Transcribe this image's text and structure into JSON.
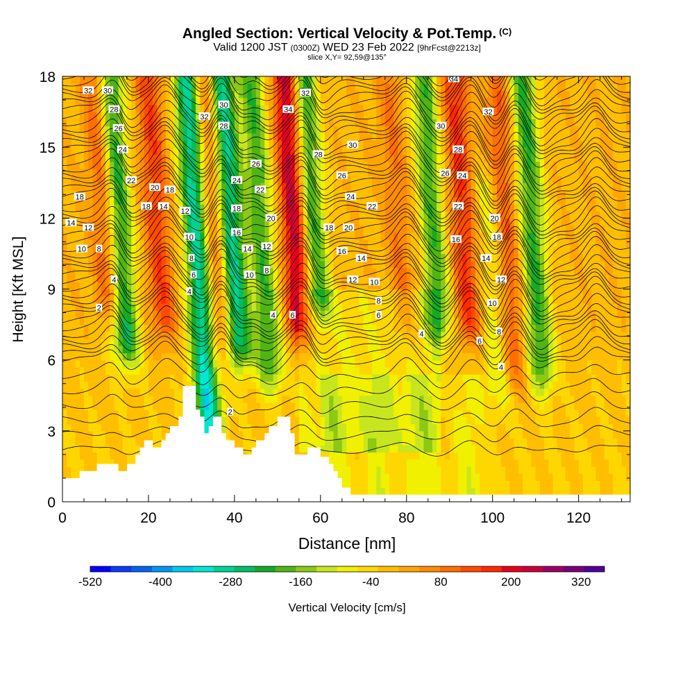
{
  "title": {
    "main": "Angled Section: Vertical Velocity & Pot.Temp.",
    "unit_tag": "(C)",
    "valid_prefix": "Valid 1200 JST",
    "valid_utc": "(0300Z)",
    "valid_date": "WED 23 Feb 2022",
    "forecast": "[9hrFcst@2213z]",
    "slice": "slice X,Y= 92,59@135°"
  },
  "chart_data": {
    "type": "heatmap",
    "xlabel": "Distance [nm]",
    "ylabel": "Height [Kft MSL]",
    "xlim": [
      0,
      132
    ],
    "ylim": [
      0,
      18
    ],
    "x_ticks": [
      0,
      20,
      40,
      60,
      80,
      100,
      120
    ],
    "y_ticks": [
      0,
      3,
      6,
      9,
      12,
      15,
      18
    ],
    "colorbar": {
      "label": "Vertical Velocity [cm/s]",
      "tick_labels": [
        "-520",
        "-400",
        "-280",
        "-160",
        "-40",
        "80",
        "200",
        "320"
      ],
      "tick_values": [
        -520,
        -400,
        -280,
        -160,
        -40,
        80,
        200,
        320
      ],
      "bins": [
        -520,
        360
      ],
      "bin_width": 40,
      "colors": [
        "#0000ff",
        "#0a3cf5",
        "#0064f0",
        "#0096f0",
        "#00c8f0",
        "#00e6d2",
        "#00d296",
        "#00be64",
        "#14aa28",
        "#50b414",
        "#8cc814",
        "#c8e61e",
        "#f0f000",
        "#ffd700",
        "#ffbe00",
        "#ffa500",
        "#ff8c00",
        "#ff6e00",
        "#ff4b00",
        "#ff2800",
        "#e6001e",
        "#c8003c",
        "#a00064",
        "#780078",
        "#500096"
      ]
    },
    "velocity_columns": [
      {
        "x": 13,
        "w_max": -220,
        "z_range": [
          7,
          18
        ]
      },
      {
        "x": 10,
        "w_max": 220,
        "z_range": [
          9,
          18
        ]
      },
      {
        "x": 22,
        "w_max": 220,
        "z_range": [
          8,
          18
        ]
      },
      {
        "x": 31,
        "w_max": -300,
        "z_range": [
          3,
          18
        ]
      },
      {
        "x": 35,
        "w_max": 230,
        "z_range": [
          7,
          18
        ]
      },
      {
        "x": 39,
        "w_max": -280,
        "z_range": [
          7,
          18
        ]
      },
      {
        "x": 46,
        "w_max": -160,
        "z_range": [
          6,
          18
        ]
      },
      {
        "x": 54,
        "w_max": 360,
        "z_range": [
          8,
          18
        ]
      },
      {
        "x": 58,
        "w_max": -200,
        "z_range": [
          9,
          18
        ]
      },
      {
        "x": 78,
        "w_max": 150,
        "z_range": [
          8,
          18
        ]
      },
      {
        "x": 86,
        "w_max": -160,
        "z_range": [
          8,
          18
        ]
      },
      {
        "x": 93,
        "w_max": 240,
        "z_range": [
          8,
          18
        ]
      },
      {
        "x": 99,
        "w_max": -40,
        "z_range": [
          5,
          13
        ]
      },
      {
        "x": 103,
        "w_max": 200,
        "z_range": [
          6,
          17
        ]
      },
      {
        "x": 109,
        "w_max": -180,
        "z_range": [
          6,
          18
        ]
      },
      {
        "x": 122,
        "w_max": 60,
        "z_range": [
          9,
          18
        ]
      }
    ],
    "terrain": [
      [
        0,
        1.0
      ],
      [
        4,
        1.0
      ],
      [
        4,
        1.3
      ],
      [
        8,
        1.3
      ],
      [
        8,
        1.6
      ],
      [
        13,
        1.6
      ],
      [
        13,
        1.3
      ],
      [
        15,
        1.3
      ],
      [
        15,
        1.6
      ],
      [
        17,
        1.6
      ],
      [
        17,
        2.0
      ],
      [
        18,
        2.0
      ],
      [
        18,
        2.3
      ],
      [
        19,
        2.3
      ],
      [
        19,
        2.6
      ],
      [
        21,
        2.6
      ],
      [
        21,
        2.3
      ],
      [
        23,
        2.3
      ],
      [
        23,
        2.6
      ],
      [
        24,
        2.6
      ],
      [
        24,
        2.9
      ],
      [
        25,
        2.9
      ],
      [
        25,
        3.2
      ],
      [
        27,
        3.2
      ],
      [
        27,
        3.6
      ],
      [
        28,
        3.6
      ],
      [
        28,
        4.9
      ],
      [
        31,
        4.9
      ],
      [
        31,
        3.9
      ],
      [
        32,
        3.9
      ],
      [
        32,
        3.6
      ],
      [
        33,
        3.6
      ],
      [
        33,
        2.9
      ],
      [
        34,
        2.9
      ],
      [
        34,
        3.2
      ],
      [
        35,
        3.2
      ],
      [
        35,
        3.6
      ],
      [
        37,
        3.6
      ],
      [
        37,
        2.9
      ],
      [
        38,
        2.9
      ],
      [
        38,
        2.6
      ],
      [
        40,
        2.6
      ],
      [
        40,
        2.3
      ],
      [
        42,
        2.3
      ],
      [
        42,
        2.0
      ],
      [
        44,
        2.0
      ],
      [
        44,
        2.3
      ],
      [
        45,
        2.3
      ],
      [
        45,
        2.6
      ],
      [
        47,
        2.6
      ],
      [
        47,
        2.9
      ],
      [
        48,
        2.9
      ],
      [
        48,
        3.2
      ],
      [
        50,
        3.2
      ],
      [
        50,
        3.6
      ],
      [
        53,
        3.6
      ],
      [
        53,
        2.9
      ],
      [
        54,
        2.9
      ],
      [
        54,
        2.0
      ],
      [
        57,
        2.0
      ],
      [
        57,
        2.3
      ],
      [
        60,
        2.3
      ],
      [
        60,
        1.9
      ],
      [
        62,
        1.9
      ],
      [
        62,
        1.6
      ],
      [
        63,
        1.6
      ],
      [
        63,
        1.3
      ],
      [
        64,
        1.3
      ],
      [
        64,
        1.0
      ],
      [
        65,
        1.0
      ],
      [
        65,
        0.6
      ],
      [
        67,
        0.6
      ],
      [
        67,
        0.3
      ],
      [
        132,
        0.3
      ]
    ],
    "theta_contours": {
      "levels": [
        2,
        4,
        6,
        8,
        10,
        12,
        14,
        16,
        18,
        20,
        22,
        24,
        26,
        28,
        30,
        32,
        34
      ],
      "labels": [
        {
          "v": "32",
          "x": 6,
          "z": 17.4
        },
        {
          "v": "30",
          "x": 10.5,
          "z": 17.4
        },
        {
          "v": "28",
          "x": 12,
          "z": 16.6
        },
        {
          "v": "26",
          "x": 13,
          "z": 15.8
        },
        {
          "v": "24",
          "x": 14,
          "z": 14.9
        },
        {
          "v": "22",
          "x": 16,
          "z": 13.6
        },
        {
          "v": "20",
          "x": 21.5,
          "z": 13.3
        },
        {
          "v": "18",
          "x": 25,
          "z": 13.2
        },
        {
          "v": "18",
          "x": 4,
          "z": 12.9
        },
        {
          "v": "18",
          "x": 19.5,
          "z": 12.5
        },
        {
          "v": "14",
          "x": 23.5,
          "z": 12.5
        },
        {
          "v": "12",
          "x": 28.5,
          "z": 12.3
        },
        {
          "v": "14",
          "x": 2,
          "z": 11.8
        },
        {
          "v": "12",
          "x": 6,
          "z": 11.6
        },
        {
          "v": "10",
          "x": 4.5,
          "z": 10.7
        },
        {
          "v": "8",
          "x": 8.5,
          "z": 10.7
        },
        {
          "v": "4",
          "x": 12,
          "z": 9.4
        },
        {
          "v": "2",
          "x": 8.5,
          "z": 8.2
        },
        {
          "v": "32",
          "x": 33,
          "z": 16.3
        },
        {
          "v": "30",
          "x": 37.5,
          "z": 16.8
        },
        {
          "v": "28",
          "x": 37.5,
          "z": 15.9
        },
        {
          "v": "26",
          "x": 45,
          "z": 14.3
        },
        {
          "v": "24",
          "x": 40.5,
          "z": 13.6
        },
        {
          "v": "22",
          "x": 46,
          "z": 13.2
        },
        {
          "v": "20",
          "x": 48.5,
          "z": 12.0
        },
        {
          "v": "18",
          "x": 40.5,
          "z": 12.4
        },
        {
          "v": "16",
          "x": 40.5,
          "z": 11.4
        },
        {
          "v": "14",
          "x": 43,
          "z": 10.7
        },
        {
          "v": "12",
          "x": 47.5,
          "z": 10.8
        },
        {
          "v": "10",
          "x": 29.5,
          "z": 11.2
        },
        {
          "v": "8",
          "x": 30,
          "z": 10.3
        },
        {
          "v": "6",
          "x": 30.5,
          "z": 9.6
        },
        {
          "v": "4",
          "x": 29.5,
          "z": 8.9
        },
        {
          "v": "10",
          "x": 43.5,
          "z": 9.6
        },
        {
          "v": "8",
          "x": 47.5,
          "z": 9.8
        },
        {
          "v": "4",
          "x": 49,
          "z": 7.9
        },
        {
          "v": "6",
          "x": 53.5,
          "z": 7.9
        },
        {
          "v": "2",
          "x": 39,
          "z": 3.8
        },
        {
          "v": "34",
          "x": 52.5,
          "z": 16.6
        },
        {
          "v": "32",
          "x": 56.5,
          "z": 17.3
        },
        {
          "v": "28",
          "x": 59.5,
          "z": 14.7
        },
        {
          "v": "30",
          "x": 67.5,
          "z": 15.1
        },
        {
          "v": "26",
          "x": 65,
          "z": 13.8
        },
        {
          "v": "24",
          "x": 67,
          "z": 12.9
        },
        {
          "v": "22",
          "x": 72,
          "z": 12.5
        },
        {
          "v": "18",
          "x": 62,
          "z": 11.6
        },
        {
          "v": "20",
          "x": 66.5,
          "z": 11.6
        },
        {
          "v": "16",
          "x": 65,
          "z": 10.6
        },
        {
          "v": "14",
          "x": 69.5,
          "z": 10.3
        },
        {
          "v": "12",
          "x": 67.5,
          "z": 9.4
        },
        {
          "v": "10",
          "x": 72.5,
          "z": 9.3
        },
        {
          "v": "8",
          "x": 73.5,
          "z": 8.5
        },
        {
          "v": "6",
          "x": 73.5,
          "z": 7.9
        },
        {
          "v": "4",
          "x": 83.5,
          "z": 7.1
        },
        {
          "v": "34",
          "x": 91,
          "z": 17.9
        },
        {
          "v": "32",
          "x": 99,
          "z": 16.5
        },
        {
          "v": "30",
          "x": 88,
          "z": 15.9
        },
        {
          "v": "28",
          "x": 92,
          "z": 14.9
        },
        {
          "v": "26",
          "x": 89,
          "z": 13.9
        },
        {
          "v": "24",
          "x": 93,
          "z": 13.8
        },
        {
          "v": "22",
          "x": 92,
          "z": 12.5
        },
        {
          "v": "20",
          "x": 100.5,
          "z": 12.0
        },
        {
          "v": "18",
          "x": 101,
          "z": 11.2
        },
        {
          "v": "16",
          "x": 91.5,
          "z": 11.1
        },
        {
          "v": "14",
          "x": 98.5,
          "z": 10.3
        },
        {
          "v": "12",
          "x": 102,
          "z": 9.4
        },
        {
          "v": "10",
          "x": 100,
          "z": 8.4
        },
        {
          "v": "8",
          "x": 101.5,
          "z": 7.2
        },
        {
          "v": "6",
          "x": 97,
          "z": 6.8
        },
        {
          "v": "4",
          "x": 102,
          "z": 5.7
        }
      ]
    }
  }
}
